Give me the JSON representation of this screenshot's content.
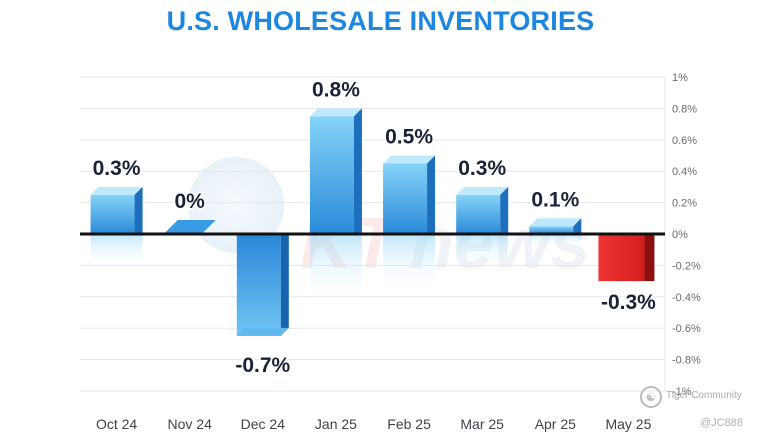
{
  "chart_data": {
    "type": "bar",
    "title": "U.S. WHOLESALE INVENTORIES",
    "categories": [
      "Oct 24",
      "Nov 24",
      "Dec 24",
      "Jan 25",
      "Feb 25",
      "Mar 25",
      "Apr 25",
      "May 25"
    ],
    "values": [
      0.3,
      0.0,
      -0.7,
      0.8,
      0.5,
      0.3,
      0.1,
      -0.3
    ],
    "data_labels": [
      "0.3%",
      "0%",
      "-0.7%",
      "0.8%",
      "0.5%",
      "0.3%",
      "0.1%",
      "-0.3%"
    ],
    "ylim": [
      -1,
      1
    ],
    "y_ticks": [
      1,
      0.8,
      0.6,
      0.4,
      0.2,
      0,
      -0.2,
      -0.4,
      -0.6,
      -0.8,
      -1
    ],
    "y_tick_labels": [
      "1%",
      "0.8%",
      "0.6%",
      "0.4%",
      "0.2%",
      "0%",
      "-0.2%",
      "-0.4%",
      "-0.6%",
      "-0.8%",
      "-1%"
    ],
    "y_axis_position": "right",
    "grid": true,
    "colors": {
      "title": "#1c87e0",
      "bar_blue_top": "#7fd0f7",
      "bar_blue_bottom": "#1e7ed3",
      "bar_red": "#e02626",
      "bar_red_side": "#8c0f0f",
      "zero_line": "#111111",
      "grid": "#e3e6ea",
      "label": "#1a2236"
    }
  },
  "watermark": {
    "brand": "Tiger Community",
    "handle": "@JC888"
  }
}
